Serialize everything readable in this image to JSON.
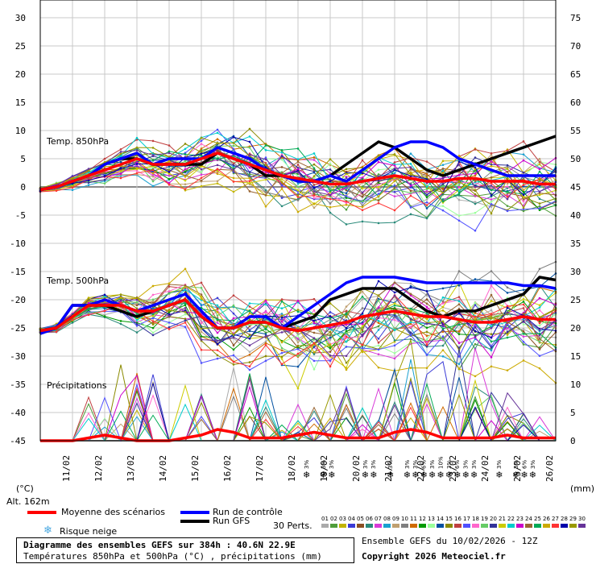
{
  "chart_data": {
    "type": "line",
    "title": "Diagramme des ensembles GEFS sur 384h : 40.6N 22.9E",
    "subtitle": "Températures 850hPa et 500hPa (°C) , précipitations (mm)",
    "run_info": "Ensemble GEFS du 10/02/2026 - 12Z",
    "copyright": "Copyright 2026 Meteociel.fr",
    "altitude": "Alt. 162m",
    "left_unit": "(°C)",
    "right_unit": "(mm)",
    "left_ticks": [
      "30",
      "25",
      "20",
      "15",
      "10",
      "5",
      "0",
      "-5",
      "-10",
      "-15",
      "-20",
      "-25",
      "-30",
      "-35",
      "-40",
      "-45"
    ],
    "right_ticks": [
      "75",
      "70",
      "65",
      "60",
      "55",
      "50",
      "45",
      "40",
      "35",
      "30",
      "25",
      "20",
      "15",
      "10",
      "5",
      "0"
    ],
    "left_range": [
      -45,
      30
    ],
    "right_range": [
      0,
      75
    ],
    "x_labels": [
      "11/02",
      "12/02",
      "13/02",
      "14/02",
      "15/02",
      "16/02",
      "17/02",
      "18/02",
      "19/02",
      "20/02",
      "21/02",
      "22/02",
      "23/02",
      "24/02",
      "25/02",
      "26/02"
    ],
    "panel_labels": {
      "t850": "Temp. 850hPa",
      "t500": "Temp. 500hPa",
      "precip": "Précipitations"
    },
    "t850": {
      "mean": [
        -0.5,
        0,
        1,
        2,
        3,
        4,
        5,
        4,
        4,
        4,
        5,
        6,
        5,
        4,
        3,
        2,
        1.5,
        1,
        0.5,
        0.5,
        1,
        1.5,
        2,
        1.5,
        1,
        1,
        1.5,
        1.5,
        1,
        1,
        1,
        0.5,
        0.5
      ],
      "control": [
        -0.5,
        0,
        1,
        2,
        4,
        5,
        6,
        4,
        5,
        5,
        5,
        7,
        6,
        5,
        3,
        2,
        1,
        1,
        2,
        1,
        3,
        5,
        7,
        8,
        8,
        7,
        5,
        4,
        3,
        2,
        2,
        2,
        2
      ],
      "gfs": [
        -0.5,
        0,
        1,
        2,
        4,
        5,
        5,
        4,
        4,
        4,
        4,
        6,
        5,
        4,
        2,
        2,
        1,
        1,
        2,
        4,
        6,
        8,
        7,
        5,
        3,
        2,
        3,
        4,
        5,
        6,
        7,
        8,
        9
      ],
      "spread": 4
    },
    "t500": {
      "mean": [
        -25.5,
        -25,
        -23,
        -21,
        -21,
        -21,
        -22,
        -22,
        -21,
        -20,
        -23,
        -25,
        -25,
        -24,
        -24,
        -25,
        -25.5,
        -25,
        -24.5,
        -24,
        -23,
        -22.5,
        -22,
        -22.5,
        -23,
        -23,
        -23.5,
        -24,
        -24,
        -23.5,
        -23,
        -23.5,
        -23.5
      ],
      "control": [
        -26,
        -25,
        -21,
        -21,
        -20,
        -21,
        -22,
        -21,
        -20,
        -19,
        -22,
        -25,
        -25,
        -23,
        -23,
        -25,
        -23,
        -21,
        -19,
        -17,
        -16,
        -16,
        -16,
        -16.5,
        -17,
        -17,
        -17,
        -17,
        -17,
        -17,
        -17.5,
        -17.5,
        -18
      ],
      "gfs": [
        -26,
        -25,
        -21,
        -21,
        -21,
        -22,
        -23,
        -22,
        -21,
        -20,
        -23,
        -25,
        -25,
        -24,
        -24,
        -25,
        -24,
        -23,
        -20,
        -19,
        -18,
        -18,
        -18,
        -20,
        -22,
        -23,
        -22,
        -22,
        -21,
        -20,
        -19,
        -16,
        -16.5
      ],
      "spread": 5
    },
    "precip": {
      "mean": [
        0,
        0,
        0,
        0.5,
        1,
        0.5,
        0,
        0,
        0,
        0.5,
        1,
        2,
        1.5,
        0.5,
        0.5,
        0.5,
        1,
        1.5,
        1,
        0.5,
        0.5,
        0.5,
        1.5,
        2,
        1.5,
        0.5,
        0.5,
        0.5,
        0.5,
        1,
        0.5,
        0.5,
        0.5
      ],
      "peaks": [
        [
          4,
          8
        ],
        [
          6,
          12
        ],
        [
          10,
          10
        ],
        [
          13,
          11
        ],
        [
          15,
          3
        ],
        [
          17,
          6
        ],
        [
          19,
          8
        ],
        [
          21,
          5
        ],
        [
          22,
          12
        ],
        [
          24,
          15
        ],
        [
          26,
          14
        ],
        [
          28,
          10
        ],
        [
          29,
          6
        ],
        [
          30,
          5
        ]
      ]
    },
    "legend": {
      "mean": "Moyenne des scénarios",
      "control": "Run de contrôle",
      "gfs": "Run GFS",
      "snow": "Risque neige",
      "perts": "30 Perts."
    },
    "snow_markers": [
      {
        "idx": 0,
        "pct": "3%"
      },
      {
        "idx": 2,
        "pct": "3%"
      },
      {
        "idx": 3,
        "pct": "3%"
      },
      {
        "idx": 7,
        "pct": "3%"
      },
      {
        "idx": 8,
        "pct": "3%"
      },
      {
        "idx": 10,
        "pct": "3%"
      },
      {
        "idx": 12,
        "pct": "3%"
      },
      {
        "idx": 13,
        "pct": "3%"
      },
      {
        "idx": 14,
        "pct": "6%"
      },
      {
        "idx": 15,
        "pct": "3%"
      },
      {
        "idx": 16,
        "pct": "10%"
      },
      {
        "idx": 17,
        "pct": "3%"
      },
      {
        "idx": 18,
        "pct": "6%"
      },
      {
        "idx": 19,
        "pct": "3%"
      },
      {
        "idx": 20,
        "pct": "3%"
      },
      {
        "idx": 23,
        "pct": "3%"
      },
      {
        "idx": 25,
        "pct": "3%"
      },
      {
        "idx": 26,
        "pct": "6%"
      },
      {
        "idx": 27,
        "pct": "3%"
      }
    ],
    "members": [
      "01",
      "02",
      "03",
      "04",
      "05",
      "06",
      "07",
      "08",
      "09",
      "10",
      "11",
      "12",
      "13",
      "14",
      "15",
      "16",
      "17",
      "18",
      "19",
      "20",
      "21",
      "22",
      "23",
      "24",
      "25",
      "26",
      "27",
      "28",
      "29",
      "30"
    ],
    "member_colors": [
      "#aaaaaa",
      "#4f9d3a",
      "#c2b400",
      "#3a3ad6",
      "#8a4f22",
      "#2a8a7a",
      "#d83ad8",
      "#1aa0d0",
      "#c0a070",
      "#7f7f7f",
      "#d06a00",
      "#009a00",
      "#9aff9a",
      "#0050a0",
      "#8a8a00",
      "#c04040",
      "#5050ff",
      "#ff66cc",
      "#66cc66",
      "#333399",
      "#cccc00",
      "#00cccc",
      "#cc00cc",
      "#996633",
      "#00aa55",
      "#ccaa00",
      "#ff3333",
      "#0000aa",
      "#999900",
      "#663399"
    ]
  }
}
